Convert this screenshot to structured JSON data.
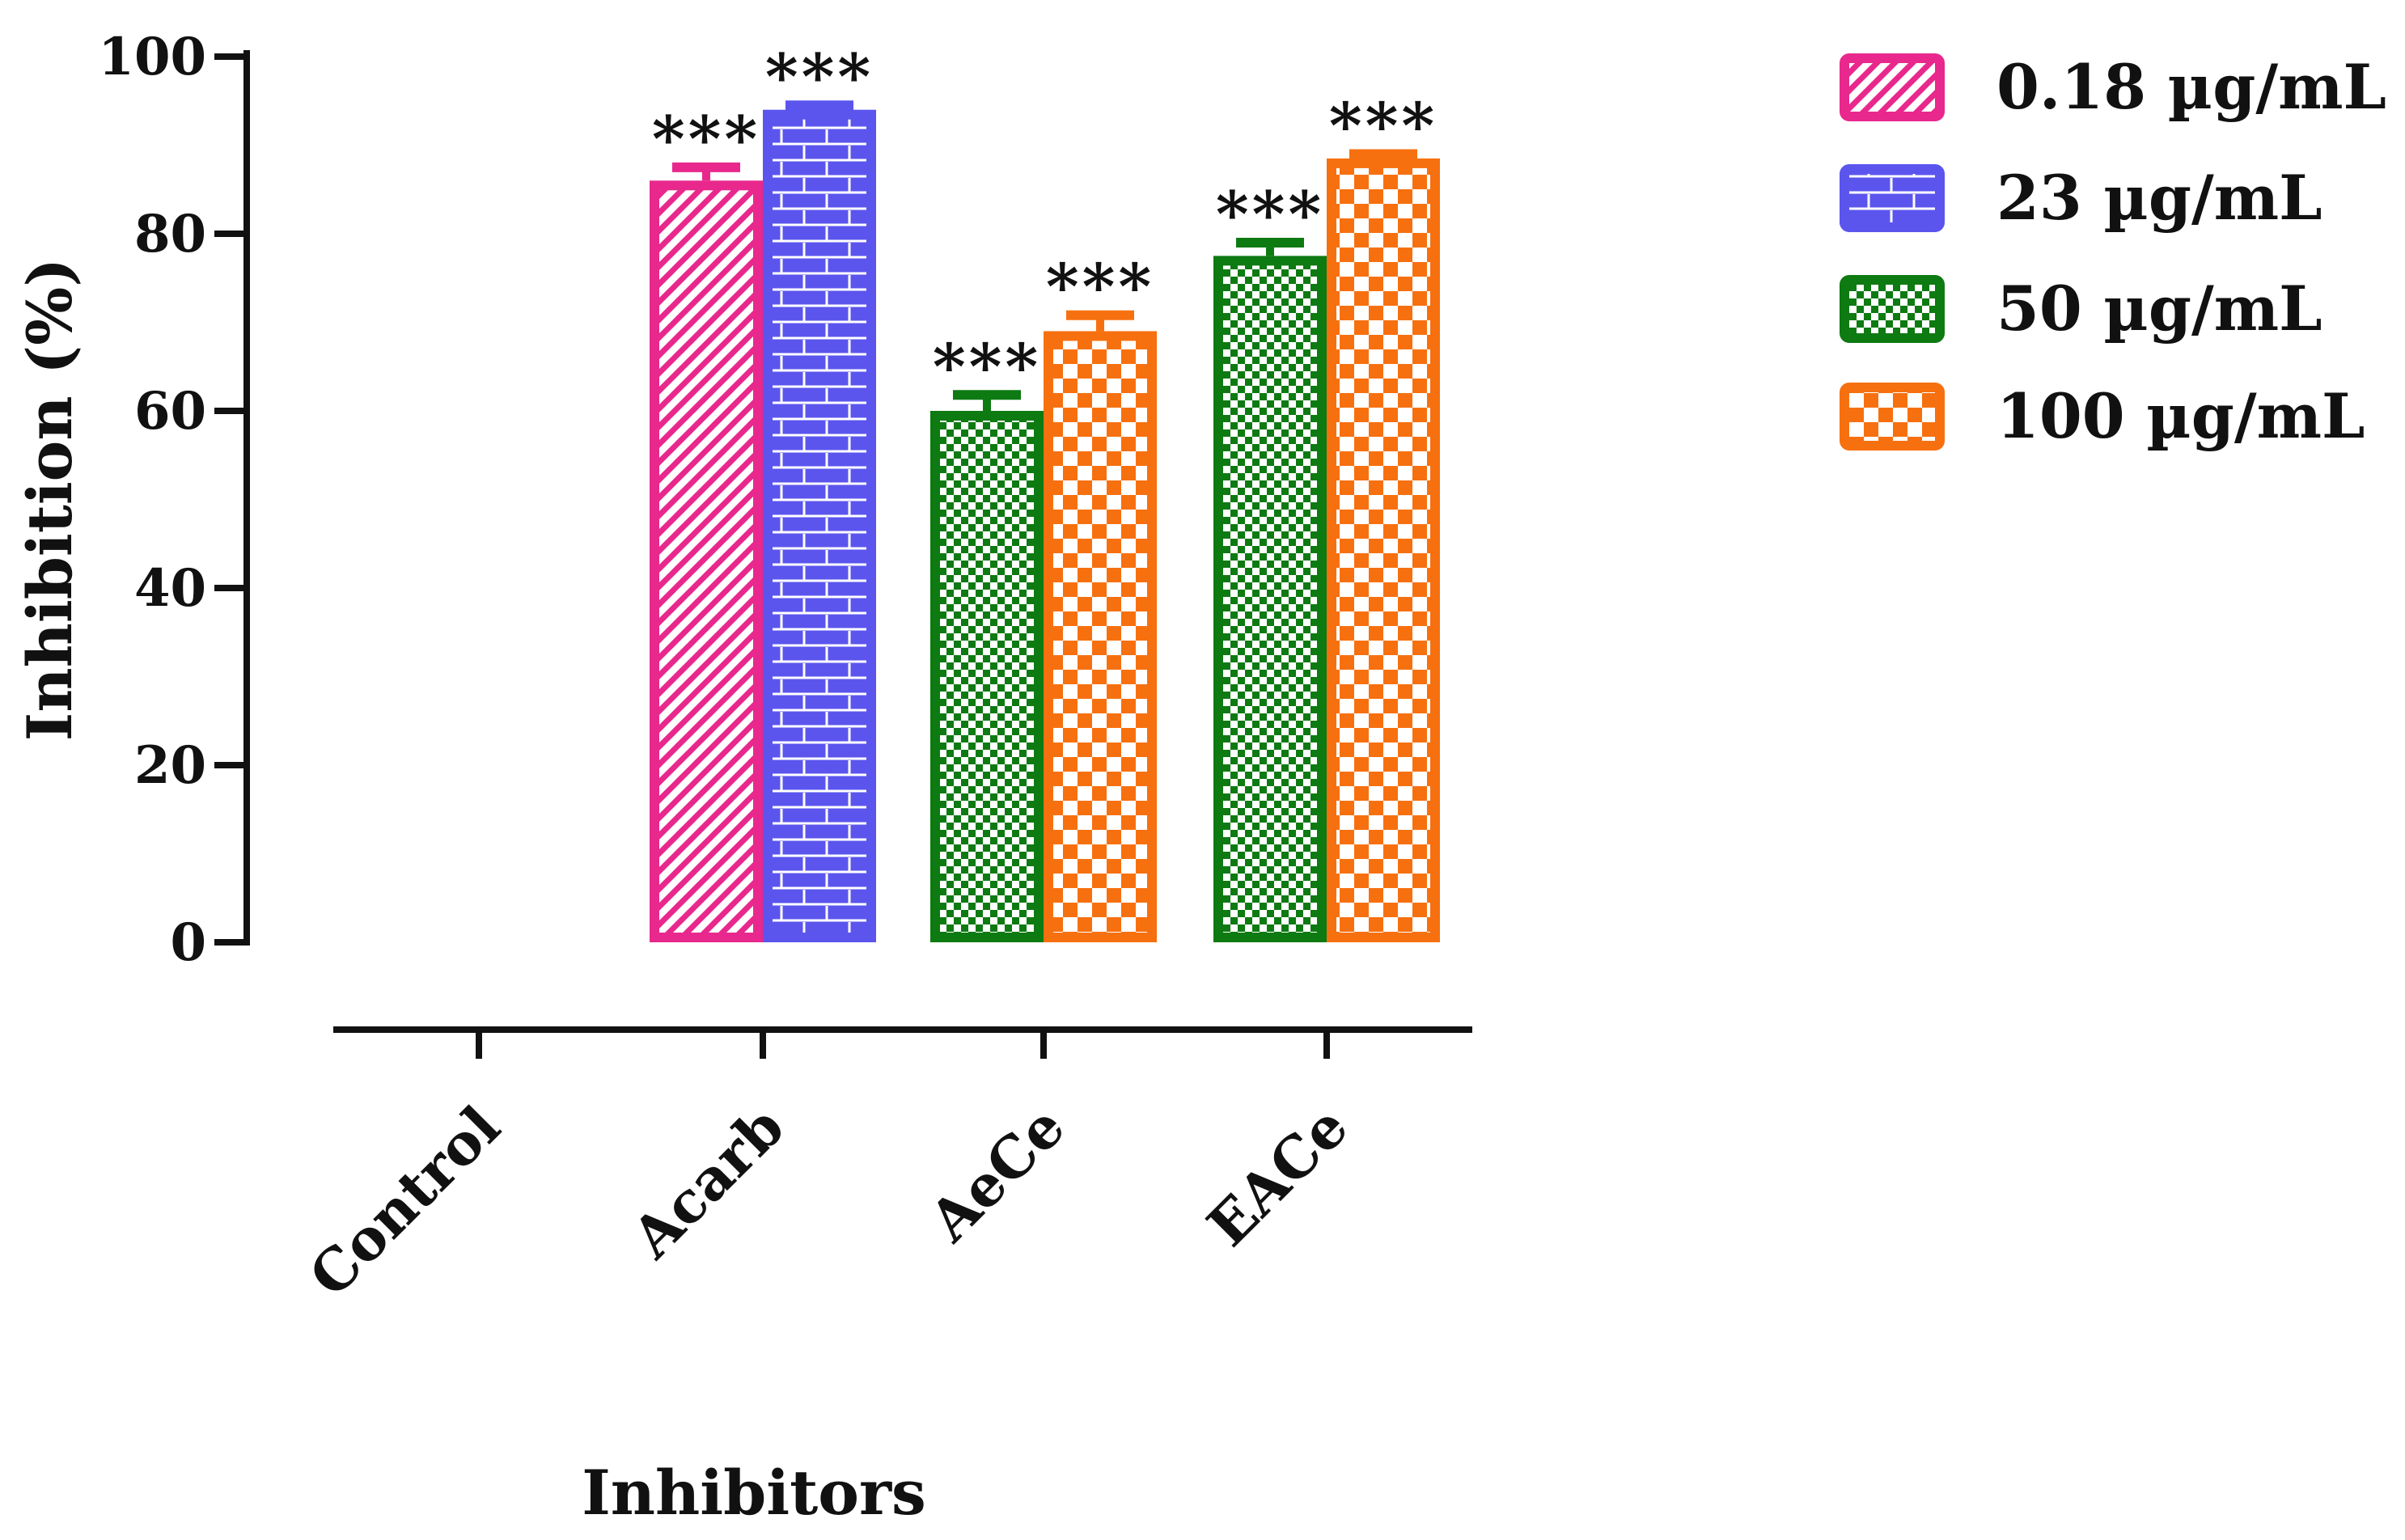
{
  "chart_data": {
    "type": "bar",
    "title": "",
    "xlabel": "Inhibitors",
    "ylabel": "Inhibition (%)",
    "ylim": [
      0,
      100
    ],
    "yticks": [
      0,
      20,
      40,
      60,
      80,
      100
    ],
    "grid": false,
    "legend_position": "top-right",
    "categories": [
      "Control",
      "Acarb",
      "AeCe",
      "EACe"
    ],
    "series": [
      {
        "name": "0.18 µg/mL",
        "color": "#e8288c",
        "pattern": "diagonal-stripes",
        "values": [
          null,
          86,
          null,
          null
        ],
        "errors": [
          null,
          1.5,
          null,
          null
        ],
        "significance": [
          null,
          "***",
          null,
          null
        ]
      },
      {
        "name": "23 µg/mL",
        "color": "#5b55ee",
        "pattern": "bricks",
        "values": [
          null,
          94,
          null,
          null
        ],
        "errors": [
          null,
          0.5,
          null,
          null
        ],
        "significance": [
          null,
          "***",
          null,
          null
        ]
      },
      {
        "name": "50 µg/mL",
        "color": "#0e7a12",
        "pattern": "small-checkerboard",
        "values": [
          null,
          null,
          60,
          77.5
        ],
        "errors": [
          null,
          null,
          1.8,
          1.5
        ],
        "significance": [
          null,
          null,
          "***",
          "***"
        ]
      },
      {
        "name": "100 µg/mL",
        "color": "#f7700f",
        "pattern": "large-checkerboard",
        "values": [
          null,
          null,
          69,
          88.5
        ],
        "errors": [
          null,
          null,
          1.8,
          0.5
        ],
        "significance": [
          null,
          null,
          "***",
          "***"
        ]
      }
    ]
  }
}
